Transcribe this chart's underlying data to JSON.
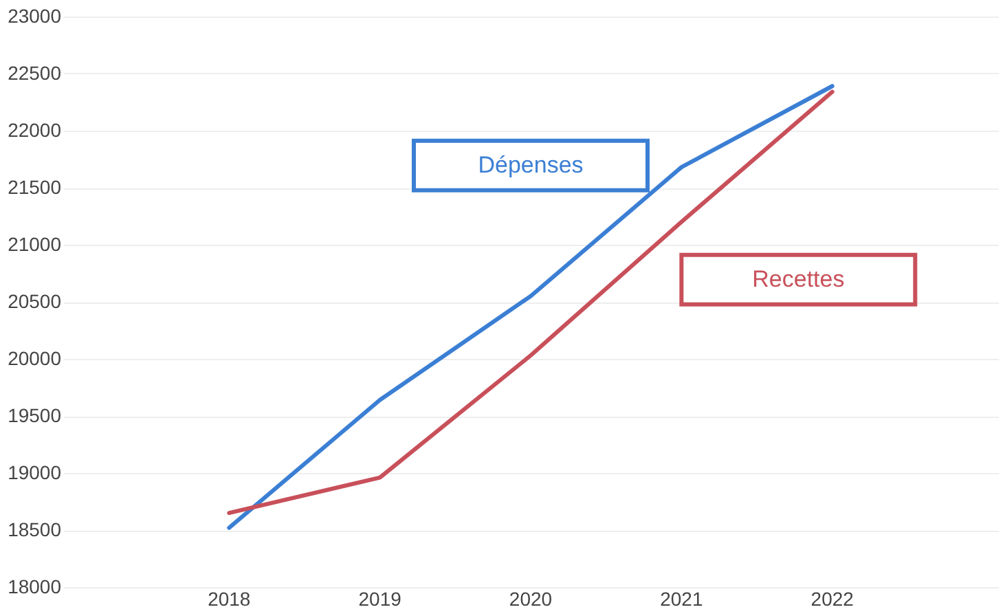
{
  "chart_data": {
    "type": "line",
    "categories": [
      "2018",
      "2019",
      "2020",
      "2021",
      "2022"
    ],
    "series": [
      {
        "name": "Dépenses",
        "color": "#3b7fd4",
        "values": [
          18520,
          19640,
          20550,
          21680,
          22390
        ]
      },
      {
        "name": "Recettes",
        "color": "#c8505a",
        "values": [
          18650,
          18960,
          20030,
          21200,
          22340
        ]
      }
    ],
    "ylim": [
      18000,
      23000
    ],
    "yticks": [
      18000,
      18500,
      19000,
      19500,
      20000,
      20500,
      21000,
      21500,
      22000,
      22500,
      23000
    ],
    "grid": "y",
    "legend": false,
    "marker": "none",
    "line_style": "solid"
  }
}
